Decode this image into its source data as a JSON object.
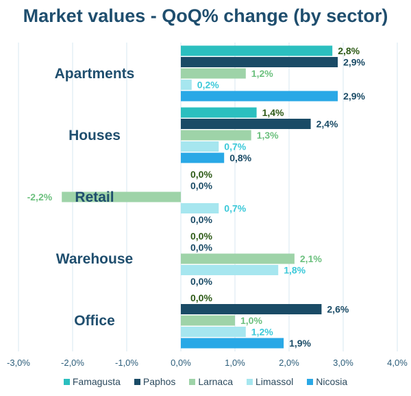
{
  "chart_data": {
    "type": "bar",
    "orientation": "horizontal",
    "title": "Market values - QoQ% change (by sector)",
    "categories": [
      "Apartments",
      "Houses",
      "Retail",
      "Warehouse",
      "Office"
    ],
    "xlim": [
      -3.0,
      4.0
    ],
    "x_ticks": [
      "-3,0%",
      "-2,0%",
      "-1,0%",
      "0,0%",
      "1,0%",
      "2,0%",
      "3,0%",
      "4,0%"
    ],
    "grid": "vertical",
    "legend": "bottom",
    "series": [
      {
        "name": "Famagusta",
        "color": "#2bbfbf",
        "label_color": "#2d5a16",
        "values": [
          2.8,
          1.4,
          0.0,
          0.0,
          0.0
        ],
        "labels": [
          "2,8%",
          "1,4%",
          "0,0%",
          "0,0%",
          "0,0%"
        ]
      },
      {
        "name": "Paphos",
        "color": "#1a4b66",
        "label_color": "#1a4b66",
        "values": [
          2.9,
          2.4,
          0.0,
          0.0,
          2.6
        ],
        "labels": [
          "2,9%",
          "2,4%",
          "0,0%",
          "0,0%",
          "2,6%"
        ]
      },
      {
        "name": "Larnaca",
        "color": "#9ed3a8",
        "label_color": "#6cc07e",
        "values": [
          1.2,
          1.3,
          -2.2,
          2.1,
          1.0
        ],
        "labels": [
          "1,2%",
          "1,3%",
          "-2,2%",
          "2,1%",
          "1,0%"
        ]
      },
      {
        "name": "Limassol",
        "color": "#a6e6ef",
        "label_color": "#3cc9d9",
        "values": [
          0.2,
          0.7,
          0.7,
          1.8,
          1.2
        ],
        "labels": [
          "0,2%",
          "0,7%",
          "0,7%",
          "1,8%",
          "1,2%"
        ]
      },
      {
        "name": "Nicosia",
        "color": "#29a8e6",
        "label_color": "#1a4b66",
        "values": [
          2.9,
          0.8,
          0.0,
          0.0,
          1.9
        ],
        "labels": [
          "2,9%",
          "0,8%",
          "0,0%",
          "0,0%",
          "1,9%"
        ]
      }
    ]
  }
}
